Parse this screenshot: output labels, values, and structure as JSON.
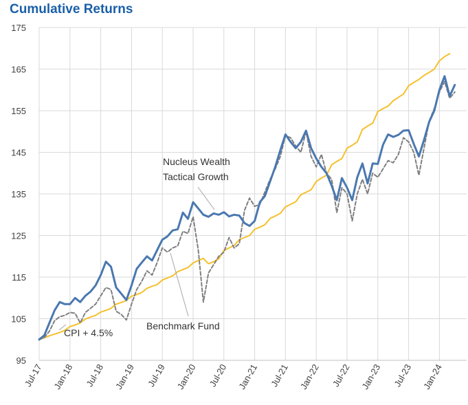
{
  "title": "Cumulative Returns",
  "chart_data": {
    "type": "line",
    "title": "Cumulative Returns",
    "xlabel": "",
    "ylabel": "",
    "ylim": [
      95,
      175
    ],
    "yticks": [
      95,
      105,
      115,
      125,
      135,
      145,
      155,
      165,
      175
    ],
    "grid": true,
    "x_tick_labels": [
      "Jul-17",
      "Jan-18",
      "Jul-18",
      "Jan-19",
      "Jul-19",
      "Jan-20",
      "Jul-20",
      "Jan-21",
      "Jul-21",
      "Jan-22",
      "Jul-22",
      "Jan-23",
      "Jul-23",
      "Jan-24"
    ],
    "x_start": "Jul-17",
    "x_end": "May-24",
    "series": [
      {
        "name": "Nucleus Wealth Tactical Growth",
        "color": "#4a78b0",
        "style": "solid",
        "values": [
          100.0,
          101.0,
          104.0,
          107.0,
          109.0,
          108.5,
          108.5,
          110.0,
          109.0,
          110.5,
          111.5,
          113.0,
          115.5,
          118.7,
          117.5,
          112.5,
          111.0,
          109.5,
          113.0,
          117.0,
          118.5,
          120.0,
          119.0,
          121.5,
          124.0,
          124.8,
          126.2,
          126.5,
          130.5,
          129.0,
          133.0,
          131.5,
          130.0,
          129.5,
          130.3,
          130.0,
          130.6,
          129.6,
          130.0,
          129.8,
          128.0,
          127.3,
          128.5,
          133.0,
          134.5,
          138.0,
          141.5,
          145.5,
          149.3,
          147.5,
          146.0,
          147.5,
          150.2,
          146.0,
          143.5,
          141.5,
          140.0,
          137.0,
          133.5,
          138.8,
          136.5,
          133.5,
          139.0,
          142.3,
          137.5,
          142.3,
          142.2,
          146.8,
          149.3,
          148.7,
          149.2,
          150.2,
          150.3,
          147.0,
          144.0,
          148.0,
          152.3,
          155.0,
          160.0,
          163.3,
          158.5,
          161.2
        ]
      },
      {
        "name": "Benchmark Fund",
        "color": "#7f7f7f",
        "style": "dashed",
        "values": [
          100.0,
          100.5,
          102.0,
          104.5,
          105.5,
          105.8,
          106.5,
          106.3,
          104.0,
          106.5,
          107.5,
          108.5,
          110.5,
          112.5,
          112.0,
          106.8,
          106.0,
          104.7,
          108.5,
          112.0,
          114.0,
          116.5,
          115.5,
          118.5,
          122.0,
          121.0,
          122.0,
          122.5,
          126.0,
          125.5,
          129.5,
          121.5,
          109.0,
          116.0,
          118.0,
          120.0,
          121.0,
          124.5,
          122.0,
          123.0,
          131.0,
          134.0,
          132.0,
          132.5,
          135.5,
          138.5,
          141.0,
          144.0,
          149.0,
          148.5,
          146.5,
          145.0,
          150.0,
          144.0,
          141.5,
          144.5,
          140.0,
          138.5,
          130.5,
          136.5,
          135.0,
          128.5,
          135.0,
          138.5,
          135.0,
          140.0,
          139.0,
          141.0,
          143.0,
          142.5,
          144.5,
          148.5,
          147.5,
          145.0,
          139.5,
          146.0,
          152.5,
          155.5,
          159.5,
          162.0,
          158.0,
          159.5
        ]
      },
      {
        "name": "CPI + 4.5%",
        "color": "#f5c02c",
        "style": "solid",
        "values": [
          100.0,
          100.4,
          100.9,
          101.3,
          101.7,
          102.2,
          103.1,
          103.5,
          104.0,
          104.9,
          105.4,
          105.8,
          106.6,
          107.0,
          107.5,
          108.5,
          108.9,
          109.4,
          110.4,
          110.8,
          111.3,
          112.3,
          112.8,
          113.2,
          114.3,
          114.8,
          115.3,
          116.3,
          116.8,
          117.3,
          118.4,
          119.0,
          119.5,
          118.2,
          118.7,
          119.4,
          121.4,
          122.0,
          122.6,
          124.0,
          124.5,
          125.0,
          126.5,
          127.0,
          127.6,
          129.1,
          129.7,
          130.3,
          131.9,
          132.5,
          133.1,
          134.8,
          135.4,
          136.0,
          138.0,
          138.8,
          139.5,
          142.0,
          142.8,
          143.5,
          146.0,
          146.7,
          147.5,
          150.5,
          151.3,
          152.0,
          154.8,
          155.5,
          156.1,
          157.4,
          158.2,
          159.0,
          161.0,
          161.8,
          162.5,
          163.5,
          164.2,
          165.0,
          167.0,
          168.0,
          168.7
        ]
      }
    ],
    "annotations": [
      "Nucleus Wealth",
      "Tactical Growth",
      "Benchmark Fund",
      "CPI + 4.5%"
    ]
  }
}
